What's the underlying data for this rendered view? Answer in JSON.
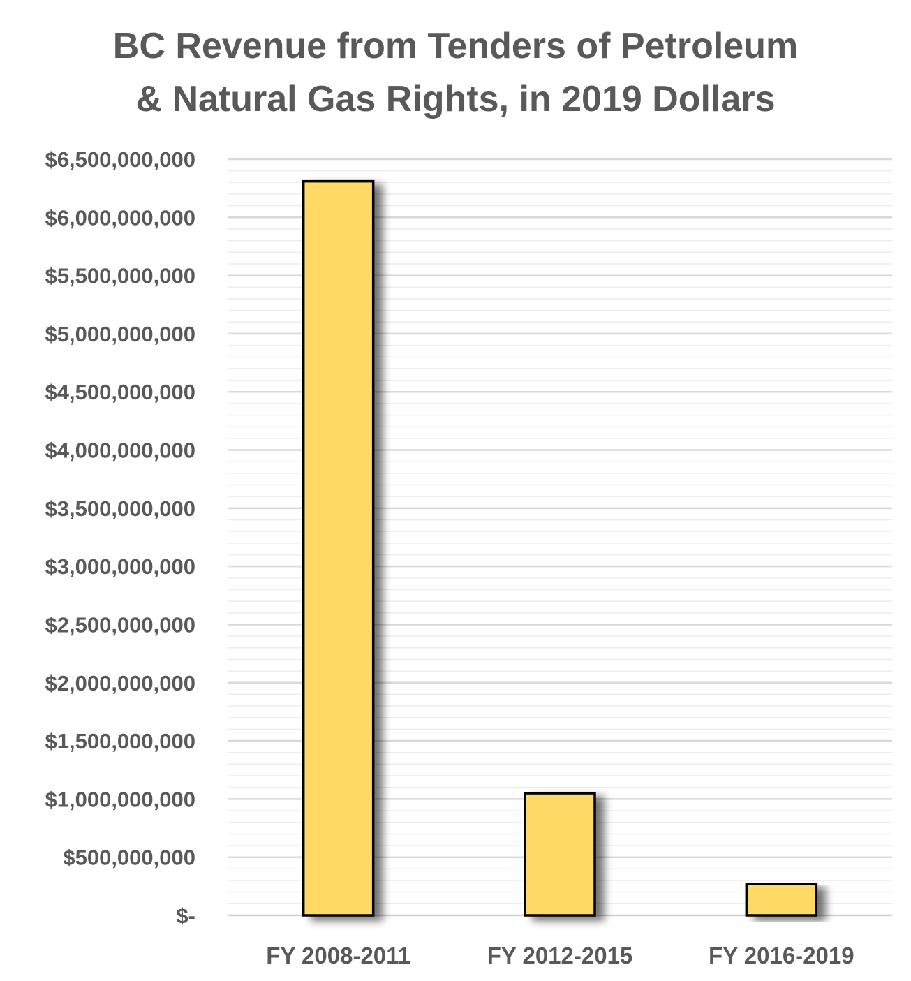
{
  "chart_data": {
    "type": "bar",
    "title_lines": [
      "BC Revenue from Tenders of Petroleum",
      "& Natural Gas Rights, in 2019 Dollars"
    ],
    "xlabel": "",
    "ylabel": "",
    "categories": [
      "FY 2008-2011",
      "FY 2012-2015",
      "FY 2016-2019"
    ],
    "values": [
      6310000000,
      1050000000,
      270000000
    ],
    "ylim": [
      0,
      6500000000
    ],
    "y_tick_step": 500000000,
    "y_tick_labels": [
      "$-",
      "$500,000,000",
      "$1,000,000,000",
      "$1,500,000,000",
      "$2,000,000,000",
      "$2,500,000,000",
      "$3,000,000,000",
      "$3,500,000,000",
      "$4,000,000,000",
      "$4,500,000,000",
      "$5,000,000,000",
      "$5,500,000,000",
      "$6,000,000,000",
      "$6,500,000,000"
    ],
    "grid": true,
    "minor_grid": true,
    "legend": "none",
    "bar_color": "#FFD966",
    "bar_outline": "#000000"
  }
}
